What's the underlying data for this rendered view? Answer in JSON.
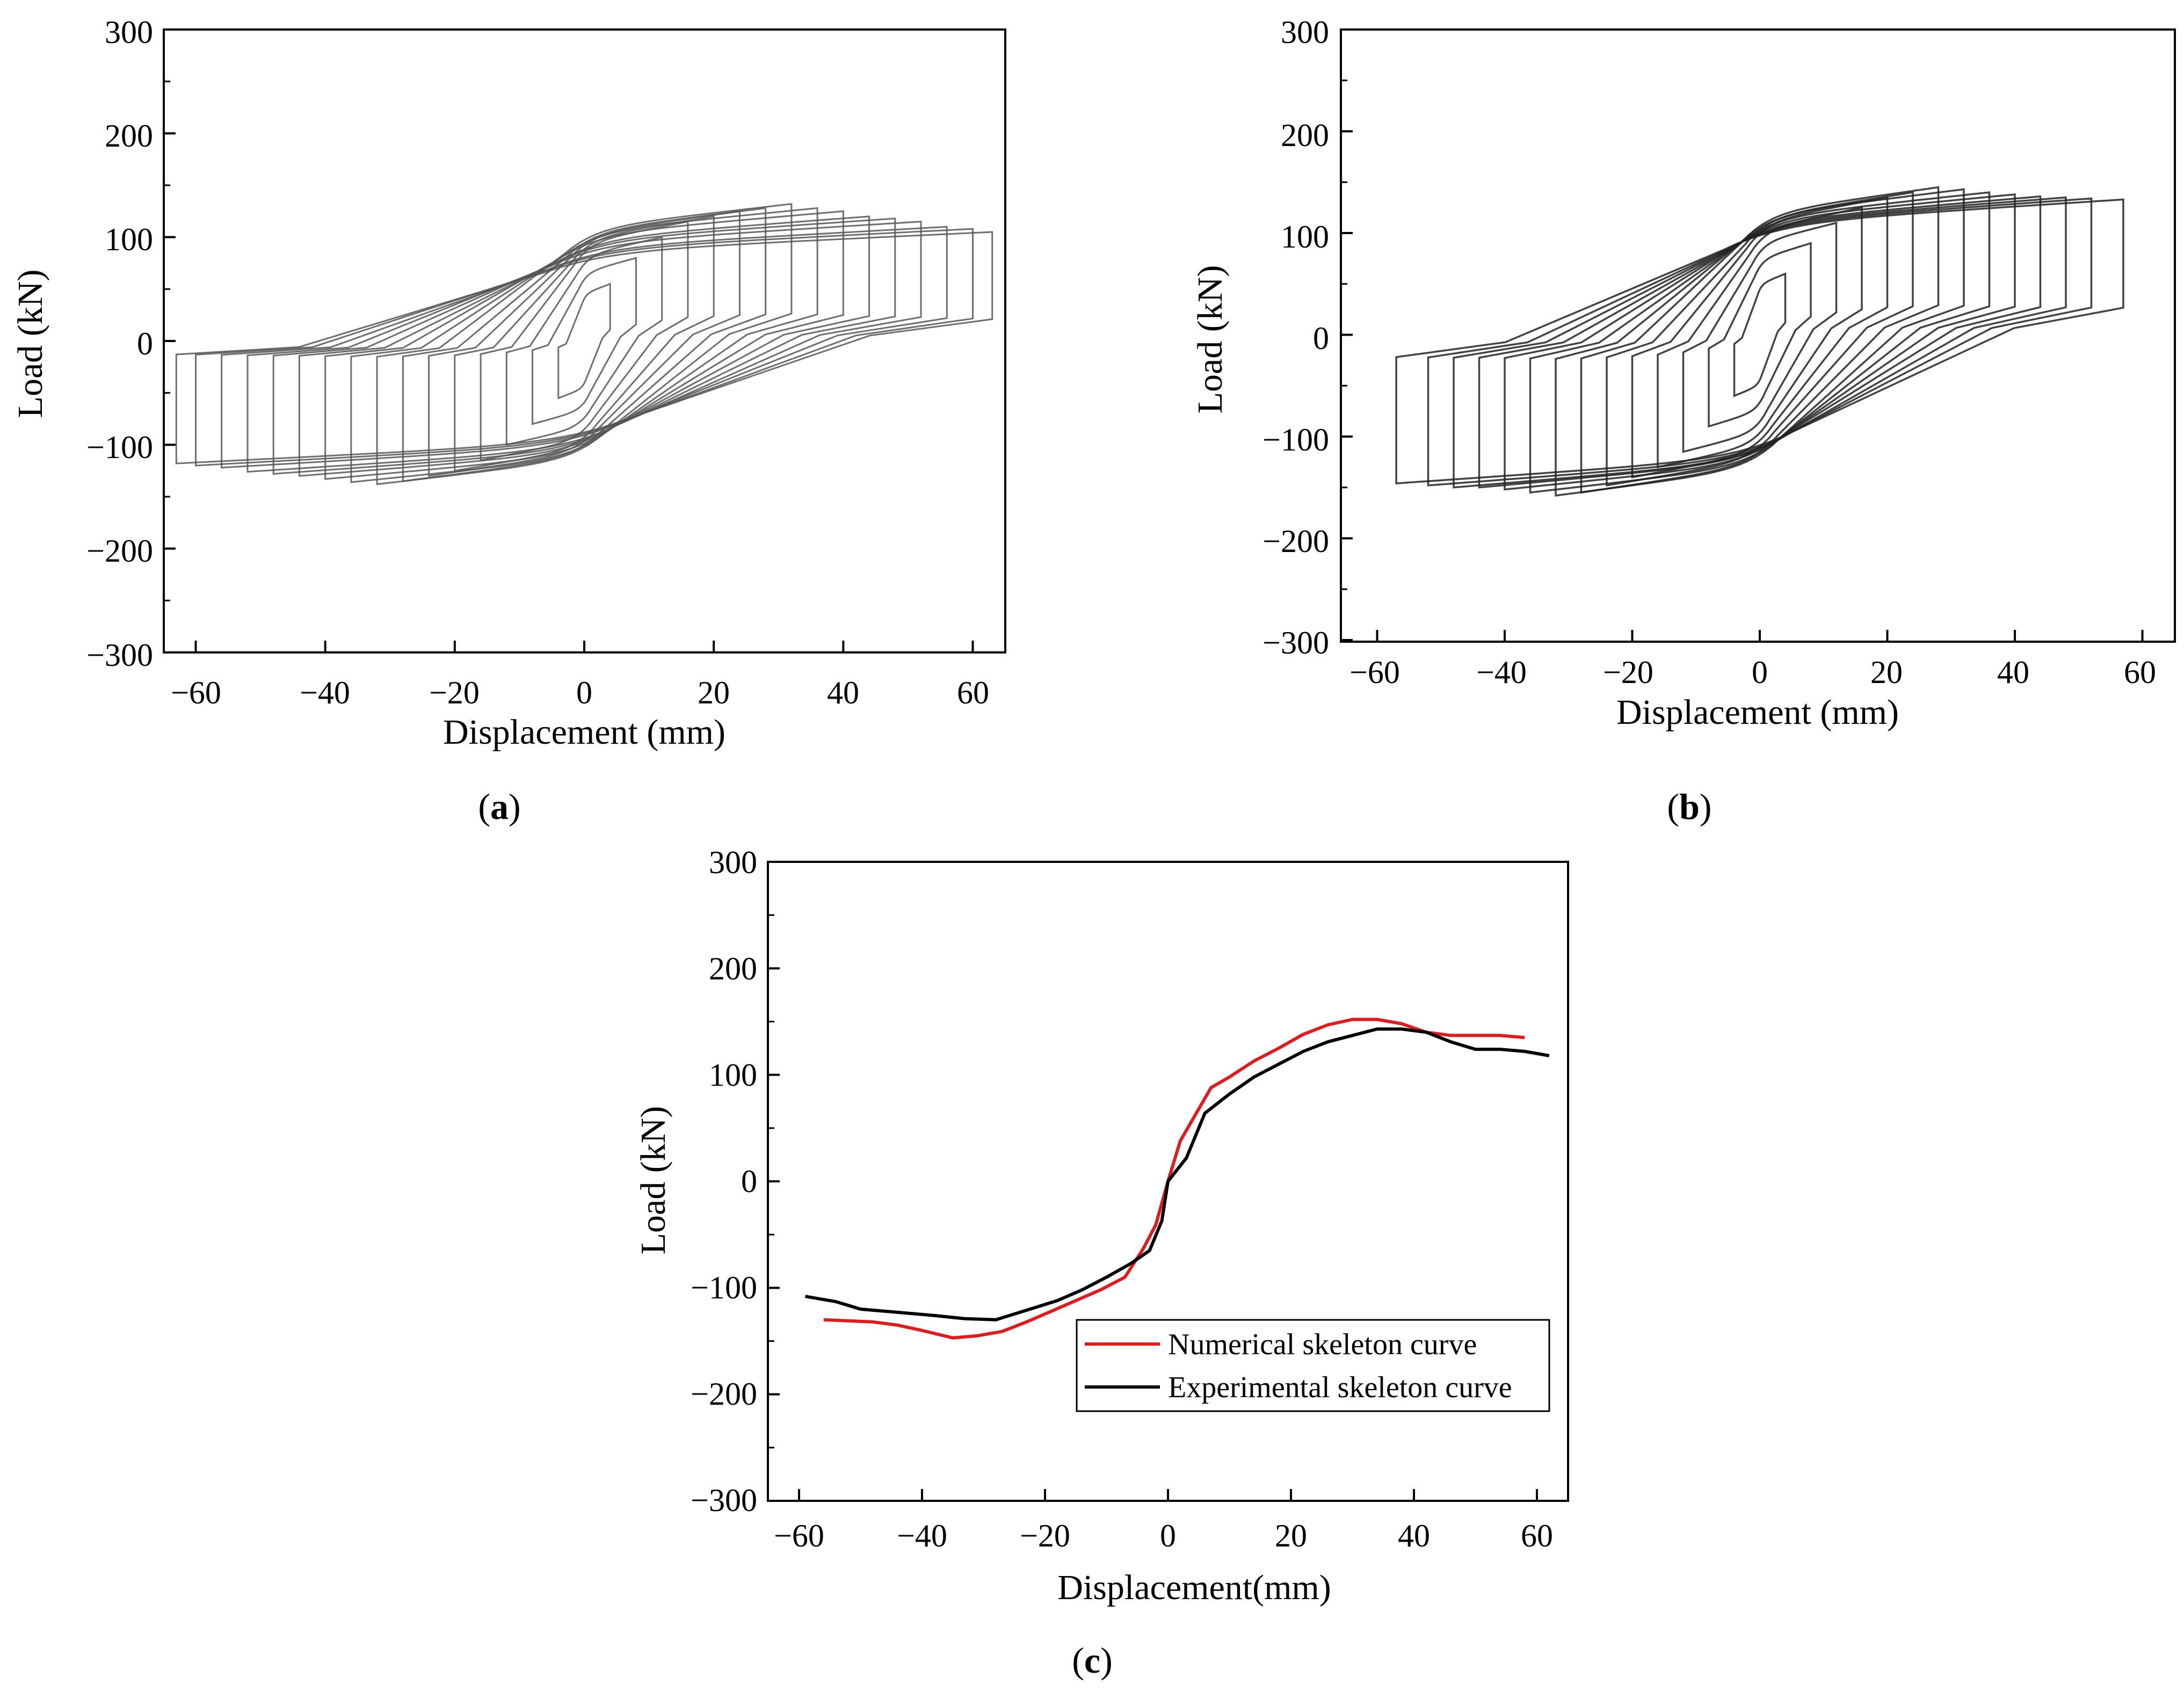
{
  "chart_data": [
    {
      "id": "a",
      "type": "line",
      "caption_letter": "a",
      "xlabel": "Displacement (mm)",
      "ylabel": "Load (kN)",
      "xlim": [
        -65,
        65
      ],
      "ylim": [
        -300,
        300
      ],
      "xticks": [
        -60,
        -40,
        -20,
        0,
        20,
        40,
        60
      ],
      "xtick_labels": [
        "−60",
        "−40",
        "−20",
        "0",
        "20",
        "40",
        "60"
      ],
      "yticks": [
        300,
        200,
        100,
        0,
        -100,
        -200,
        -300
      ],
      "ytick_labels": [
        "300",
        "200",
        "100",
        "0",
        "−100",
        "−200",
        "−300"
      ],
      "loops": {
        "amplitudes": [
          4,
          8,
          12,
          16,
          20,
          24,
          28,
          32,
          36,
          40,
          44,
          48,
          52,
          56,
          60,
          63
        ],
        "peaks_pos": [
          55,
          80,
          100,
          115,
          120,
          125,
          128,
          132,
          128,
          125,
          120,
          118,
          115,
          110,
          108,
          105
        ],
        "peaks_neg": [
          -55,
          -80,
          -100,
          -115,
          -125,
          -130,
          -135,
          -138,
          -136,
          -133,
          -130,
          -128,
          -126,
          -122,
          -120,
          -118
        ],
        "color": "#555555"
      }
    },
    {
      "id": "b",
      "type": "line",
      "caption_letter": "b",
      "xlabel": "Displacement (mm)",
      "ylabel": "Load (kN)",
      "xlim": [
        -65,
        65
      ],
      "ylim": [
        -300,
        300
      ],
      "xticks": [
        -60,
        -40,
        -20,
        0,
        20,
        40,
        60
      ],
      "xtick_labels": [
        "−60",
        "−40",
        "−20",
        "0",
        "20",
        "40",
        "60"
      ],
      "yticks": [
        300,
        200,
        100,
        0,
        -100,
        -200,
        -300
      ],
      "ytick_labels": [
        "300",
        "200",
        "100",
        "0",
        "−100",
        "−200",
        "−300"
      ],
      "loops": {
        "amplitudes": [
          4,
          8,
          12,
          16,
          20,
          24,
          28,
          32,
          36,
          40,
          44,
          48,
          52,
          57
        ],
        "peaks_pos": [
          60,
          90,
          110,
          125,
          135,
          140,
          145,
          143,
          140,
          138,
          136,
          135,
          134,
          133
        ],
        "peaks_neg": [
          -60,
          -90,
          -115,
          -130,
          -140,
          -148,
          -155,
          -158,
          -155,
          -152,
          -150,
          -150,
          -148,
          -146
        ],
        "color": "#222222"
      }
    },
    {
      "id": "c",
      "type": "line",
      "caption_letter": "c",
      "xlabel": "Displacement(mm)",
      "ylabel": "Load (kN)",
      "xlim": [
        -65,
        65
      ],
      "ylim": [
        -300,
        300
      ],
      "xticks": [
        -60,
        -40,
        -20,
        0,
        20,
        40,
        60
      ],
      "xtick_labels": [
        "−60",
        "−40",
        "−20",
        "0",
        "20",
        "40",
        "60"
      ],
      "yticks": [
        300,
        200,
        100,
        0,
        -100,
        -200,
        -300
      ],
      "ytick_labels": [
        "300",
        "200",
        "100",
        "0",
        "−100",
        "−200",
        "−300"
      ],
      "legend_position": "lower-right",
      "series": [
        {
          "name": "Numerical skeleton curve",
          "color": "#e31a1c",
          "x": [
            -56,
            -52,
            -48,
            -44,
            -40,
            -35,
            -31,
            -27,
            -23,
            -19,
            -15,
            -11,
            -7,
            -4,
            -2,
            0,
            2,
            4,
            7,
            10,
            14,
            18,
            22,
            26,
            30,
            34,
            38,
            42,
            46,
            50,
            54,
            58
          ],
          "y": [
            -130,
            -131,
            -132,
            -135,
            -140,
            -147,
            -145,
            -141,
            -132,
            -122,
            -112,
            -102,
            -90,
            -63,
            -41,
            0,
            38,
            58,
            88,
            98,
            113,
            125,
            138,
            147,
            152,
            152,
            148,
            140,
            137,
            137,
            137,
            135
          ]
        },
        {
          "name": "Experimental skeleton curve",
          "color": "#000000",
          "x": [
            -59,
            -54,
            -50,
            -44,
            -38,
            -33,
            -28,
            -23,
            -18,
            -14,
            -10,
            -6,
            -3,
            -1,
            0,
            3,
            6,
            10,
            14,
            18,
            22,
            26,
            30,
            34,
            38,
            42,
            46,
            50,
            54,
            58,
            62
          ],
          "y": [
            -108,
            -113,
            -120,
            -123,
            -126,
            -129,
            -130,
            -121,
            -112,
            -102,
            -90,
            -77,
            -65,
            -37,
            0,
            22,
            64,
            82,
            98,
            110,
            122,
            131,
            137,
            143,
            143,
            140,
            131,
            124,
            124,
            122,
            118
          ]
        }
      ]
    }
  ]
}
